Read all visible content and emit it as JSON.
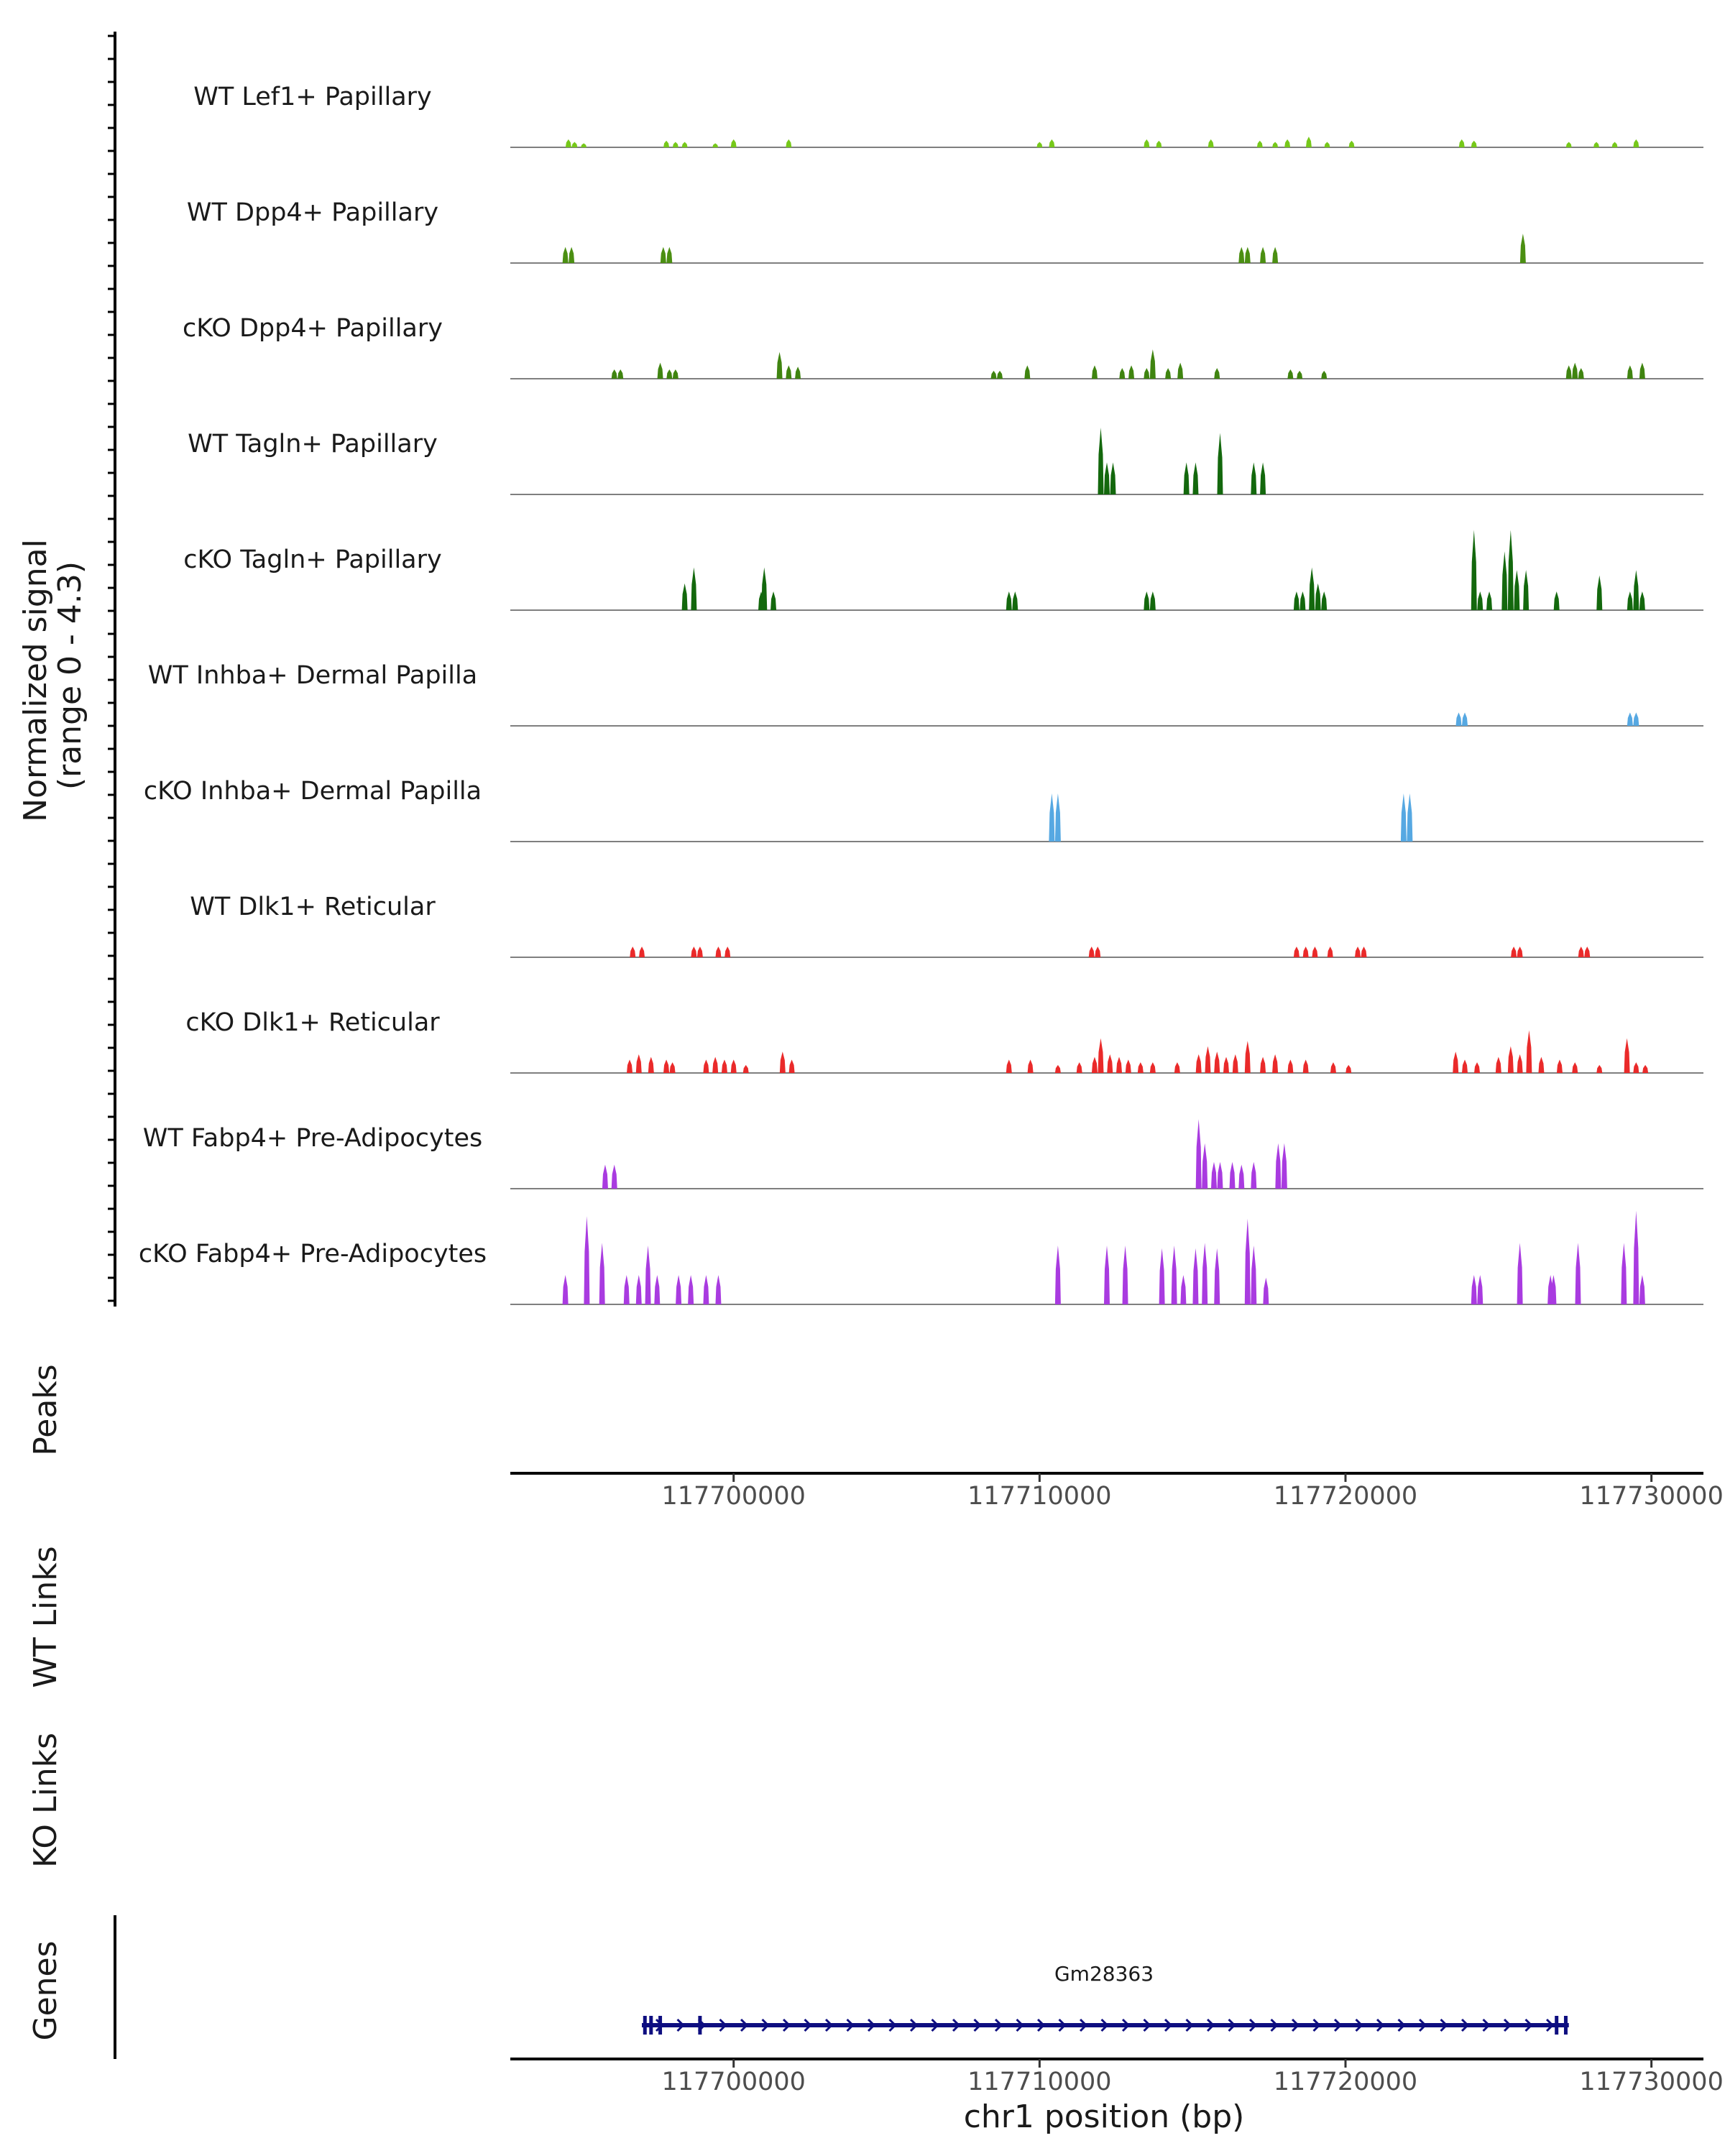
{
  "chart_data": {
    "type": "coverage",
    "chromosome": "chr1",
    "xlim": [
      117692700,
      117731700
    ],
    "ylim": [
      0,
      4.3
    ],
    "ylabel_lines": [
      "Normalized signal",
      "(range 0 - 4.3)"
    ],
    "xlabel": "chr1 position (bp)",
    "x_ticks": [
      117700000,
      117710000,
      117720000,
      117730000
    ],
    "x_tick_labels": [
      "117700000",
      "117710000",
      "117720000",
      "117730000"
    ],
    "tracks": [
      {
        "name": "WT Lef1+ Papillary",
        "color": "#76c81a",
        "peaks": [
          [
            117694600,
            0.3
          ],
          [
            117694800,
            0.2
          ],
          [
            117695100,
            0.15
          ],
          [
            117697800,
            0.25
          ],
          [
            117698100,
            0.2
          ],
          [
            117698400,
            0.2
          ],
          [
            117699400,
            0.15
          ],
          [
            117700000,
            0.3
          ],
          [
            117701800,
            0.3
          ],
          [
            117710000,
            0.2
          ],
          [
            117710400,
            0.3
          ],
          [
            117713500,
            0.3
          ],
          [
            117713900,
            0.25
          ],
          [
            117715600,
            0.3
          ],
          [
            117717200,
            0.25
          ],
          [
            117717700,
            0.2
          ],
          [
            117718100,
            0.3
          ],
          [
            117718800,
            0.4
          ],
          [
            117719400,
            0.2
          ],
          [
            117720200,
            0.25
          ],
          [
            117723800,
            0.3
          ],
          [
            117724200,
            0.25
          ],
          [
            117727300,
            0.2
          ],
          [
            117728200,
            0.2
          ],
          [
            117728800,
            0.2
          ],
          [
            117729500,
            0.3
          ]
        ]
      },
      {
        "name": "WT Dpp4+ Papillary",
        "color": "#4b8f12",
        "peaks": [
          [
            117694500,
            0.6
          ],
          [
            117694700,
            0.6
          ],
          [
            117697700,
            0.6
          ],
          [
            117697900,
            0.6
          ],
          [
            117716600,
            0.6
          ],
          [
            117716800,
            0.6
          ],
          [
            117717300,
            0.6
          ],
          [
            117717700,
            0.6
          ],
          [
            117725800,
            1.1
          ]
        ]
      },
      {
        "name": "cKO Dpp4+ Papillary",
        "color": "#3f8410",
        "peaks": [
          [
            117696100,
            0.35
          ],
          [
            117696300,
            0.35
          ],
          [
            117697600,
            0.6
          ],
          [
            117697900,
            0.35
          ],
          [
            117698100,
            0.35
          ],
          [
            117701500,
            1.0
          ],
          [
            117701800,
            0.5
          ],
          [
            117702100,
            0.45
          ],
          [
            117708500,
            0.3
          ],
          [
            117708700,
            0.3
          ],
          [
            117709600,
            0.5
          ],
          [
            117711800,
            0.5
          ],
          [
            117712700,
            0.4
          ],
          [
            117713000,
            0.5
          ],
          [
            117713500,
            0.4
          ],
          [
            117713700,
            1.1
          ],
          [
            117714200,
            0.4
          ],
          [
            117714600,
            0.6
          ],
          [
            117715800,
            0.4
          ],
          [
            117718200,
            0.35
          ],
          [
            117718500,
            0.3
          ],
          [
            117719300,
            0.3
          ],
          [
            117727300,
            0.5
          ],
          [
            117727500,
            0.6
          ],
          [
            117727700,
            0.4
          ],
          [
            117729300,
            0.5
          ],
          [
            117729700,
            0.6
          ]
        ]
      },
      {
        "name": "WT Tagln+ Papillary",
        "color": "#13680d",
        "peaks": [
          [
            117712000,
            2.5
          ],
          [
            117712200,
            1.2
          ],
          [
            117712400,
            1.2
          ],
          [
            117714800,
            1.2
          ],
          [
            117715100,
            1.2
          ],
          [
            117715900,
            2.3
          ],
          [
            117717000,
            1.2
          ],
          [
            117717300,
            1.2
          ]
        ]
      },
      {
        "name": "cKO Tagln+ Papillary",
        "color": "#13680d",
        "peaks": [
          [
            117698400,
            1.0
          ],
          [
            117698700,
            1.6
          ],
          [
            117700900,
            0.7
          ],
          [
            117701000,
            1.6
          ],
          [
            117701300,
            0.7
          ],
          [
            117709000,
            0.7
          ],
          [
            117709200,
            0.7
          ],
          [
            117713500,
            0.7
          ],
          [
            117713700,
            0.7
          ],
          [
            117718400,
            0.7
          ],
          [
            117718600,
            0.7
          ],
          [
            117718900,
            1.6
          ],
          [
            117719100,
            1.0
          ],
          [
            117719300,
            0.7
          ],
          [
            117724200,
            3.0
          ],
          [
            117724400,
            0.7
          ],
          [
            117724700,
            0.7
          ],
          [
            117725200,
            2.2
          ],
          [
            117725400,
            3.0
          ],
          [
            117725600,
            1.5
          ],
          [
            117725900,
            1.5
          ],
          [
            117726900,
            0.7
          ],
          [
            117728300,
            1.3
          ],
          [
            117729300,
            0.7
          ],
          [
            117729500,
            1.5
          ],
          [
            117729700,
            0.7
          ]
        ]
      },
      {
        "name": "WT Inhba+ Dermal Papilla",
        "color": "#56a8e2",
        "peaks": [
          [
            117723700,
            0.5
          ],
          [
            117723900,
            0.5
          ],
          [
            117729300,
            0.5
          ],
          [
            117729500,
            0.5
          ]
        ]
      },
      {
        "name": "cKO Inhba+ Dermal Papilla",
        "color": "#56a8e2",
        "peaks": [
          [
            117710400,
            1.8
          ],
          [
            117710600,
            1.8
          ],
          [
            117721900,
            1.8
          ],
          [
            117722100,
            1.8
          ]
        ]
      },
      {
        "name": "WT Dlk1+ Reticular",
        "color": "#ea2a2a",
        "peaks": [
          [
            117696700,
            0.4
          ],
          [
            117697000,
            0.4
          ],
          [
            117698700,
            0.4
          ],
          [
            117698900,
            0.4
          ],
          [
            117699500,
            0.4
          ],
          [
            117699800,
            0.4
          ],
          [
            117711700,
            0.4
          ],
          [
            117711900,
            0.4
          ],
          [
            117718400,
            0.4
          ],
          [
            117718700,
            0.4
          ],
          [
            117719000,
            0.4
          ],
          [
            117719500,
            0.4
          ],
          [
            117720400,
            0.4
          ],
          [
            117720600,
            0.4
          ],
          [
            117725500,
            0.4
          ],
          [
            117725700,
            0.4
          ],
          [
            117727700,
            0.4
          ],
          [
            117727900,
            0.4
          ]
        ]
      },
      {
        "name": "cKO Dlk1+ Reticular",
        "color": "#ea2a2a",
        "peaks": [
          [
            117696600,
            0.5
          ],
          [
            117696900,
            0.7
          ],
          [
            117697300,
            0.6
          ],
          [
            117697800,
            0.5
          ],
          [
            117698000,
            0.4
          ],
          [
            117699100,
            0.5
          ],
          [
            117699400,
            0.6
          ],
          [
            117699700,
            0.5
          ],
          [
            117700000,
            0.5
          ],
          [
            117700400,
            0.3
          ],
          [
            117701600,
            0.8
          ],
          [
            117701900,
            0.5
          ],
          [
            117709000,
            0.5
          ],
          [
            117709700,
            0.5
          ],
          [
            117710600,
            0.3
          ],
          [
            117711300,
            0.4
          ],
          [
            117711800,
            0.6
          ],
          [
            117712000,
            1.3
          ],
          [
            117712300,
            0.7
          ],
          [
            117712600,
            0.6
          ],
          [
            117712900,
            0.5
          ],
          [
            117713300,
            0.4
          ],
          [
            117713700,
            0.4
          ],
          [
            117714500,
            0.4
          ],
          [
            117715200,
            0.7
          ],
          [
            117715500,
            1.0
          ],
          [
            117715800,
            0.8
          ],
          [
            117716100,
            0.6
          ],
          [
            117716400,
            0.7
          ],
          [
            117716800,
            1.2
          ],
          [
            117717300,
            0.6
          ],
          [
            117717700,
            0.7
          ],
          [
            117718200,
            0.5
          ],
          [
            117718700,
            0.5
          ],
          [
            117719600,
            0.4
          ],
          [
            117720100,
            0.3
          ],
          [
            117723600,
            0.8
          ],
          [
            117723900,
            0.5
          ],
          [
            117724300,
            0.4
          ],
          [
            117725000,
            0.6
          ],
          [
            117725400,
            1.0
          ],
          [
            117725700,
            0.7
          ],
          [
            117726000,
            1.6
          ],
          [
            117726400,
            0.6
          ],
          [
            117727000,
            0.5
          ],
          [
            117727500,
            0.4
          ],
          [
            117728300,
            0.3
          ],
          [
            117729200,
            1.3
          ],
          [
            117729500,
            0.4
          ],
          [
            117729800,
            0.3
          ]
        ]
      },
      {
        "name": "WT Fabp4+ Pre-Adipocytes",
        "color": "#a93be0",
        "peaks": [
          [
            117695800,
            0.9
          ],
          [
            117696100,
            0.9
          ],
          [
            117715200,
            2.6
          ],
          [
            117715400,
            1.7
          ],
          [
            117715700,
            1.0
          ],
          [
            117715900,
            1.0
          ],
          [
            117716300,
            1.0
          ],
          [
            117716600,
            0.9
          ],
          [
            117717000,
            1.0
          ],
          [
            117717800,
            1.7
          ],
          [
            117718000,
            1.7
          ]
        ]
      },
      {
        "name": "cKO Fabp4+ Pre-Adipocytes",
        "color": "#a93be0",
        "peaks": [
          [
            117694500,
            1.1
          ],
          [
            117695200,
            3.3
          ],
          [
            117695700,
            2.3
          ],
          [
            117696500,
            1.1
          ],
          [
            117696900,
            1.1
          ],
          [
            117697200,
            2.2
          ],
          [
            117697500,
            1.1
          ],
          [
            117698200,
            1.1
          ],
          [
            117698600,
            1.1
          ],
          [
            117699100,
            1.1
          ],
          [
            117699500,
            1.1
          ],
          [
            117710600,
            2.2
          ],
          [
            117712200,
            2.2
          ],
          [
            117712800,
            2.2
          ],
          [
            117714000,
            2.1
          ],
          [
            117714400,
            2.2
          ],
          [
            117714700,
            1.1
          ],
          [
            117715100,
            2.1
          ],
          [
            117715400,
            2.3
          ],
          [
            117715800,
            2.1
          ],
          [
            117716800,
            3.2
          ],
          [
            117717000,
            2.2
          ],
          [
            117717400,
            1.0
          ],
          [
            117724200,
            1.1
          ],
          [
            117724400,
            1.1
          ],
          [
            117725700,
            2.3
          ],
          [
            117726700,
            1.1
          ],
          [
            117726800,
            1.1
          ],
          [
            117727600,
            2.3
          ],
          [
            117729100,
            2.3
          ],
          [
            117729500,
            3.5
          ],
          [
            117729700,
            1.1
          ]
        ]
      }
    ],
    "panels": [
      "Peaks",
      "WT Links",
      "KO Links",
      "Genes"
    ],
    "gene": {
      "name": "Gm28363",
      "start": 117697000,
      "end": 117727300,
      "strand": "+",
      "color": "#0e0e80",
      "exons": [
        117697100,
        117697300,
        117697600,
        117698900,
        117726900,
        117727200
      ]
    }
  }
}
